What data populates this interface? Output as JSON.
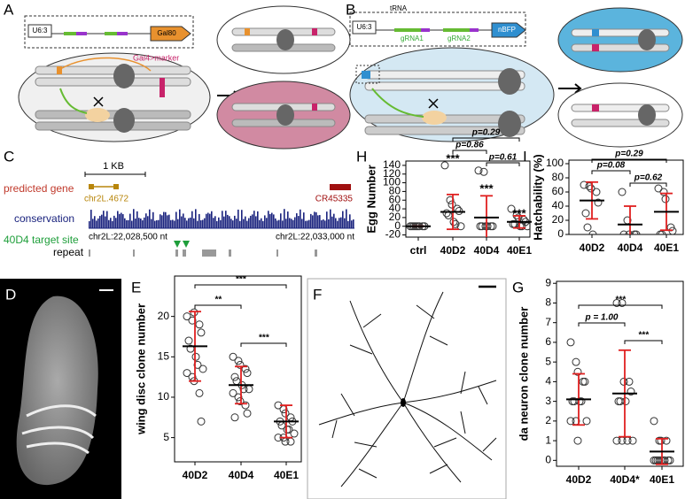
{
  "panel_labels": [
    "A",
    "B",
    "C",
    "D",
    "E",
    "F",
    "G",
    "H",
    "I"
  ],
  "panel_a": {
    "promoter": "U6:3",
    "gene": "Gal80",
    "marker": "Gal4>marker"
  },
  "panel_b": {
    "promoter": "U6:3",
    "trna": "tRNA",
    "grna1": "gRNA1",
    "grna2": "gRNA2",
    "reporter": "nBFP"
  },
  "panel_c": {
    "scale": "1 KB",
    "tracks": [
      "predicted gene",
      "conservation",
      "40D4 target site",
      "repeat"
    ],
    "genes": [
      "chr2L.4672",
      "CR45335"
    ],
    "coords": [
      "chr2L:22,028,500 nt",
      "chr2L:22,033,000 nt"
    ]
  },
  "chart_data": [
    {
      "type": "strip",
      "ylabel": "wing disc clone number",
      "categories": [
        "40D2",
        "40D4",
        "40E1"
      ],
      "values": [
        [
          20,
          19.5,
          20.5,
          19,
          18,
          17,
          16,
          15,
          14,
          13.5,
          13,
          12.5,
          12,
          10.5,
          7
        ],
        [
          15,
          14.5,
          14,
          13.5,
          13,
          12.5,
          12,
          11.5,
          11,
          11,
          10.5,
          10,
          9.5,
          9,
          8,
          7.5
        ],
        [
          9,
          8.5,
          8,
          7.5,
          7,
          7,
          6.5,
          6,
          6,
          5.5,
          5,
          5,
          4.5,
          4.5
        ]
      ],
      "means": [
        16.3,
        11.5,
        7
      ],
      "errors": [
        4.3,
        2.3,
        2
      ],
      "ylim": [
        2,
        25
      ],
      "yticks": [
        5,
        10,
        15,
        20
      ],
      "comparisons": [
        {
          "pair": [
            "40D2",
            "40D4"
          ],
          "label": "**"
        },
        {
          "pair": [
            "40D2",
            "40E1"
          ],
          "label": "***"
        },
        {
          "pair": [
            "40D4",
            "40E1"
          ],
          "label": "***"
        }
      ]
    },
    {
      "type": "strip",
      "ylabel": "da neuron clone number",
      "categories": [
        "40D2",
        "40D4*",
        "40E1"
      ],
      "values": [
        [
          6,
          5,
          4.5,
          4,
          4,
          3,
          3,
          3,
          3,
          2,
          2,
          2,
          1
        ],
        [
          8,
          8,
          4,
          4,
          3.5,
          3,
          3,
          3,
          1,
          1,
          1,
          1
        ],
        [
          2,
          1,
          1,
          1,
          0,
          0,
          0,
          0,
          0,
          0,
          0,
          0,
          0
        ]
      ],
      "means": [
        3.1,
        3.4,
        0.45
      ],
      "errors": [
        1.3,
        2.2,
        0.65
      ],
      "ylim": [
        -0.3,
        9.1
      ],
      "yticks": [
        0,
        1,
        2,
        3,
        4,
        5,
        6,
        7,
        8,
        9
      ],
      "comparisons": [
        {
          "pair": [
            "40D2",
            "40D4*"
          ],
          "label": "p = 1.00"
        },
        {
          "pair": [
            "40D2",
            "40E1"
          ],
          "label": "***"
        },
        {
          "pair": [
            "40D4*",
            "40E1"
          ],
          "label": "***"
        }
      ]
    },
    {
      "type": "strip",
      "ylabel": "Egg Number",
      "categories": [
        "ctrl",
        "40D2",
        "40D4",
        "40E1"
      ],
      "values": [
        [
          0,
          0,
          0,
          0,
          0,
          0,
          0,
          0
        ],
        [
          140,
          60,
          50,
          40,
          35,
          30,
          25,
          10,
          5,
          0
        ],
        [
          128,
          125,
          0,
          0,
          0,
          0,
          0,
          0
        ],
        [
          40,
          25,
          20,
          15,
          10,
          5,
          5,
          0,
          0,
          0
        ]
      ],
      "means": [
        0,
        33,
        20,
        10
      ],
      "errors": [
        0,
        40,
        50,
        14
      ],
      "ylim": [
        -25,
        150
      ],
      "yticks": [
        -20,
        0,
        20,
        40,
        60,
        80,
        100,
        120,
        140
      ],
      "group_labels": [
        null,
        "***",
        "***",
        "***"
      ],
      "comparisons": [
        {
          "pair": [
            "40D2",
            "40E1"
          ],
          "label": "p=0.29"
        },
        {
          "pair": [
            "40D2",
            "40D4"
          ],
          "label": "p=0.86"
        },
        {
          "pair": [
            "40D4",
            "40E1"
          ],
          "label": "p=0.61"
        }
      ]
    },
    {
      "type": "strip",
      "ylabel": "Hatchability (%)",
      "categories": [
        "40D2",
        "40D4",
        "40E1"
      ],
      "values": [
        [
          70,
          68,
          65,
          60,
          45,
          30,
          10,
          0
        ],
        [
          60,
          20,
          0,
          0,
          0,
          0
        ],
        [
          65,
          60,
          50,
          10,
          5,
          0,
          0
        ]
      ],
      "means": [
        48,
        14,
        32
      ],
      "errors": [
        26,
        26,
        26
      ],
      "ylim": [
        0,
        105
      ],
      "yticks": [
        0,
        20,
        40,
        60,
        80,
        100
      ],
      "comparisons": [
        {
          "pair": [
            "40D2",
            "40E1"
          ],
          "label": "p=0.29"
        },
        {
          "pair": [
            "40D2",
            "40D4"
          ],
          "label": "p=0.08"
        },
        {
          "pair": [
            "40D4",
            "40E1"
          ],
          "label": "p=0.62"
        }
      ]
    }
  ]
}
